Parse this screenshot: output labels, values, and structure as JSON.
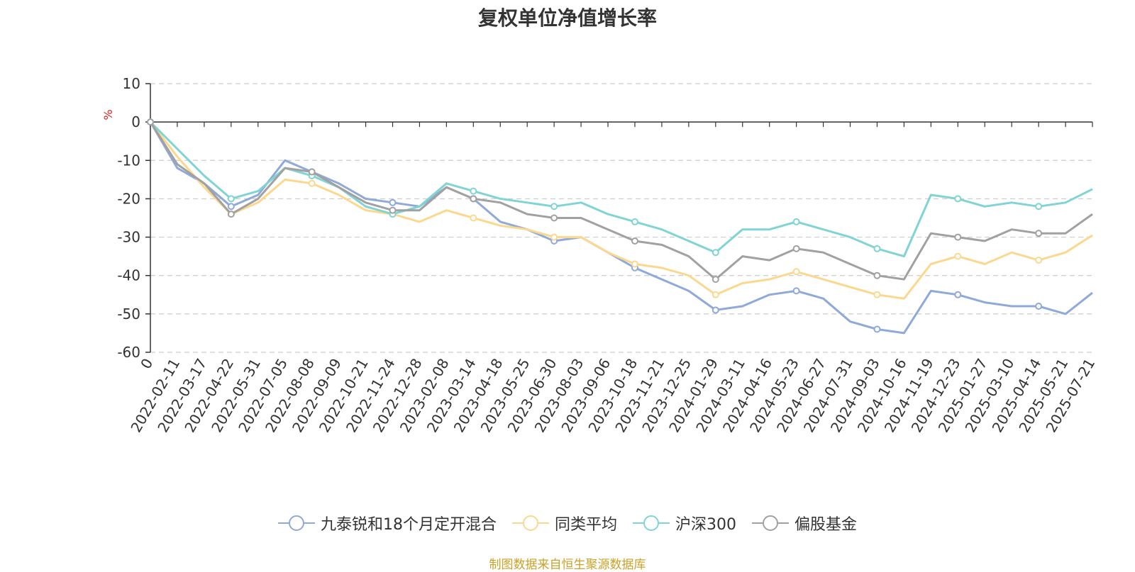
{
  "chart_data": {
    "type": "line",
    "title": "复权单位净值增长率",
    "ylabel": "%",
    "ylim": [
      -60,
      10
    ],
    "yticks": [
      10,
      0,
      -10,
      -20,
      -30,
      -40,
      -50,
      -60
    ],
    "grid": true,
    "legend_position": "bottom",
    "x_tick_labels": [
      "0",
      "2022-02-11",
      "2022-03-17",
      "2022-04-22",
      "2022-05-31",
      "2022-07-05",
      "2022-08-08",
      "2022-09-09",
      "2022-10-21",
      "2022-11-24",
      "2022-12-28",
      "2023-02-08",
      "2023-03-14",
      "2023-04-18",
      "2023-05-25",
      "2023-06-30",
      "2023-08-03",
      "2023-09-06",
      "2023-10-18",
      "2023-11-21",
      "2023-12-25",
      "2024-01-29",
      "2024-03-11",
      "2024-04-16",
      "2024-05-23",
      "2024-06-27",
      "2024-07-31",
      "2024-09-03",
      "2024-10-16",
      "2024-11-19",
      "2024-12-23",
      "2025-01-27",
      "2025-03-10",
      "2025-04-14",
      "2025-05-21",
      "2025-07-21"
    ],
    "series": [
      {
        "name": "九泰锐和18个月定开混合",
        "color": "#8fa9d9",
        "values": [
          0,
          -12,
          -16,
          -22,
          -19,
          -10,
          -13,
          -16,
          -20,
          -21,
          -22,
          -17,
          -20,
          -26,
          -28,
          -31,
          -30,
          -34,
          -38,
          -41,
          -44,
          -49,
          -48,
          -45,
          -44,
          -46,
          -52,
          -54,
          -55,
          -44,
          -45,
          -47,
          -48,
          -48,
          -50,
          -44.5
        ]
      },
      {
        "name": "同类平均",
        "color": "#fbd88f",
        "values": [
          0,
          -9,
          -17,
          -24,
          -21,
          -15,
          -16,
          -19,
          -23,
          -24,
          -26,
          -23,
          -25,
          -27,
          -28,
          -30,
          -30,
          -34,
          -37,
          -38,
          -40,
          -45,
          -42,
          -41,
          -39,
          -41,
          -43,
          -45,
          -46,
          -37,
          -35,
          -37,
          -34,
          -36,
          -34,
          -29.5
        ]
      },
      {
        "name": "沪深300",
        "color": "#80d4d3",
        "values": [
          0,
          -7,
          -14,
          -20,
          -18,
          -12,
          -14,
          -17,
          -22,
          -24,
          -22,
          -16,
          -18,
          -20,
          -21,
          -22,
          -21,
          -24,
          -26,
          -28,
          -31,
          -34,
          -28,
          -28,
          -26,
          -28,
          -30,
          -33,
          -35,
          -19,
          -20,
          -22,
          -21,
          -22,
          -21,
          -17.5
        ]
      },
      {
        "name": "偏股基金",
        "color": "#a1a1a1",
        "values": [
          0,
          -11,
          -16,
          -24,
          -20,
          -12,
          -13,
          -17,
          -21,
          -23,
          -23,
          -17,
          -20,
          -21,
          -24,
          -25,
          -25,
          -28,
          -31,
          -32,
          -35,
          -41,
          -35,
          -36,
          -33,
          -34,
          -37,
          -40,
          -41,
          -29,
          -30,
          -31,
          -28,
          -29,
          -29,
          -24
        ]
      }
    ]
  },
  "legend_items": [
    "九泰锐和18个月定开混合",
    "同类平均",
    "沪深300",
    "偏股基金"
  ],
  "source_text": "制图数据来自恒生聚源数据库"
}
